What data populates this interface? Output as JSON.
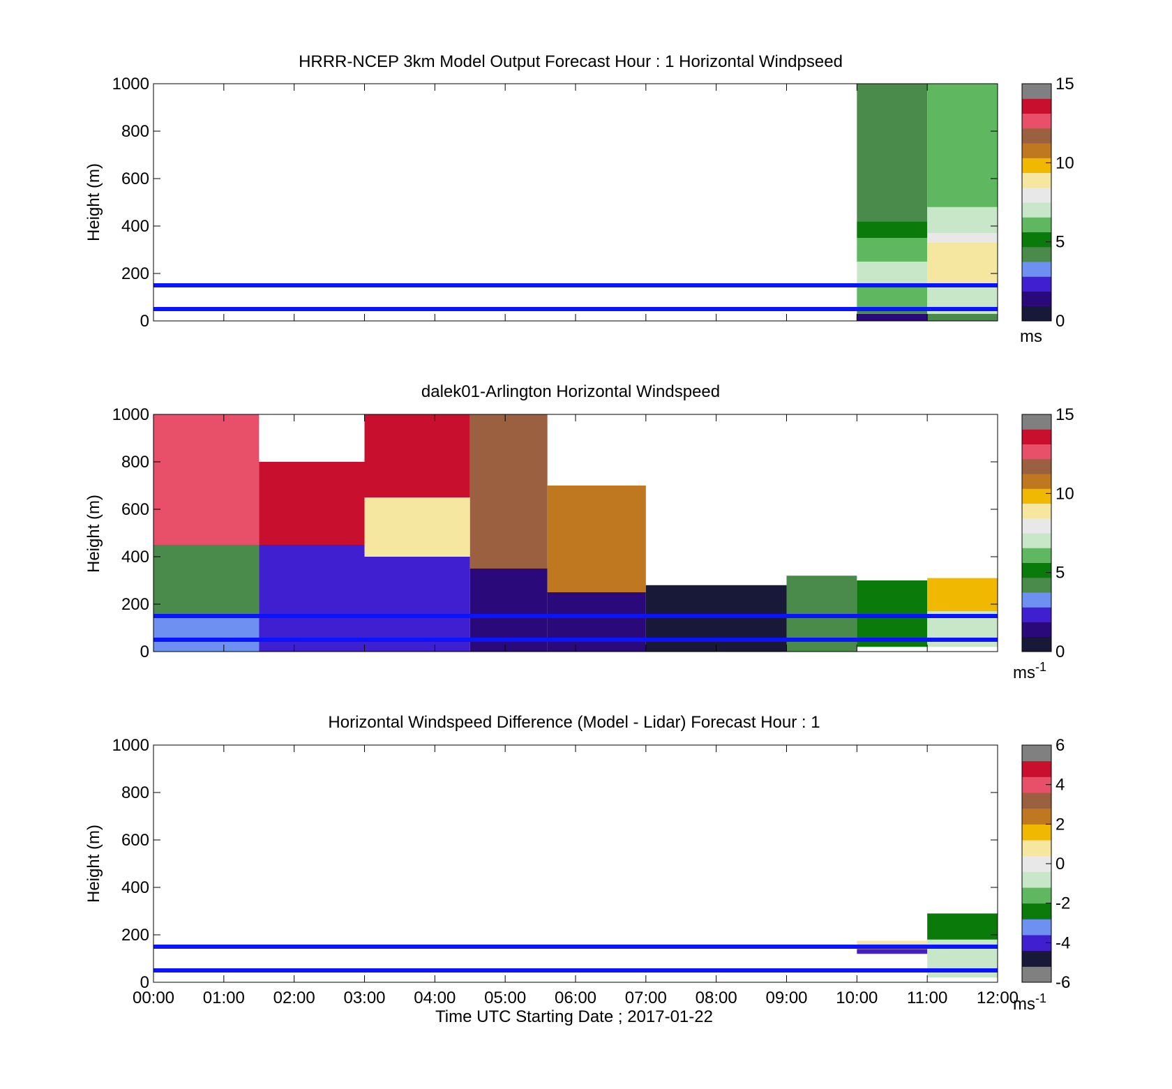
{
  "colors": {
    "overlay_line": "#0a14ff",
    "windspeed_scale": [
      "#181838",
      "#2a0a7a",
      "#3f1fd0",
      "#6e90f0",
      "#4a8a4a",
      "#0a7a0a",
      "#5fb85f",
      "#c8e6c8",
      "#e8e8e8",
      "#f5e6a0",
      "#f0b800",
      "#c07820",
      "#9a6040",
      "#e8506a",
      "#c8102e",
      "#808080"
    ],
    "difference_scale": [
      "#808080",
      "#181838",
      "#3f1fd0",
      "#6e90f0",
      "#0a7a0a",
      "#5fb85f",
      "#c8e6c8",
      "#e8e8e8",
      "#f5e6a0",
      "#f0b800",
      "#c07820",
      "#9a6040",
      "#e8506a",
      "#c8102e",
      "#808080"
    ]
  },
  "chart_data": [
    {
      "type": "heatmap",
      "title": "HRRR-NCEP 3km Model Output   Forecast Hour : 1 Horizontal Windpseed",
      "ylabel": "Height (m)",
      "ylim": [
        0,
        1000
      ],
      "yticks": [
        "0",
        "200",
        "400",
        "600",
        "800",
        "1000"
      ],
      "xlim": [
        "00:00",
        "12:00"
      ],
      "colorbar": {
        "range": [
          0,
          15
        ],
        "ticks": [
          "0",
          "5",
          "10",
          "15"
        ],
        "unit": "ms"
      },
      "overlay_lines_m": [
        150,
        50
      ],
      "columns": [
        {
          "t0": 10,
          "t1": 11,
          "cells": [
            [
              0,
              30,
              1.5
            ],
            [
              30,
              50,
              4.5
            ],
            [
              50,
              150,
              6.5
            ],
            [
              150,
              250,
              6.8
            ],
            [
              250,
              350,
              6.2
            ],
            [
              350,
              420,
              5.0
            ],
            [
              420,
              1000,
              4.4
            ]
          ]
        },
        {
          "t0": 11,
          "t1": 12,
          "cells": [
            [
              0,
              30,
              4.6
            ],
            [
              30,
              80,
              6.9
            ],
            [
              80,
              150,
              7.2
            ],
            [
              150,
              300,
              8.6
            ],
            [
              300,
              330,
              8.8
            ],
            [
              330,
              370,
              7.5
            ],
            [
              370,
              480,
              6.6
            ],
            [
              480,
              1000,
              6.0
            ]
          ]
        }
      ]
    },
    {
      "type": "heatmap",
      "title": "dalek01-Arlington  Horizontal Windspeed",
      "ylabel": "Height (m)",
      "ylim": [
        0,
        1000
      ],
      "yticks": [
        "0",
        "200",
        "400",
        "600",
        "800",
        "1000"
      ],
      "xlim": [
        "00:00",
        "12:00"
      ],
      "colorbar": {
        "range": [
          0,
          15
        ],
        "ticks": [
          "0",
          "5",
          "10",
          "15"
        ],
        "unit": "ms-1"
      },
      "overlay_lines_m": [
        150,
        50
      ],
      "regions": [
        {
          "t0": 0.0,
          "t1": 1.5,
          "h0": 0,
          "h1": 150,
          "v": 3.5
        },
        {
          "t0": 0.0,
          "t1": 1.5,
          "h0": 150,
          "h1": 450,
          "v": 4.6
        },
        {
          "t0": 0.0,
          "t1": 1.5,
          "h0": 450,
          "h1": 1000,
          "v": 13.0
        },
        {
          "t0": 1.5,
          "t1": 3.0,
          "h0": 0,
          "h1": 450,
          "v": 2.8
        },
        {
          "t0": 1.5,
          "t1": 3.0,
          "h0": 450,
          "h1": 800,
          "v": 13.8
        },
        {
          "t0": 3.0,
          "t1": 4.5,
          "h0": 0,
          "h1": 400,
          "v": 2.0
        },
        {
          "t0": 3.0,
          "t1": 4.5,
          "h0": 400,
          "h1": 650,
          "v": 9.0
        },
        {
          "t0": 3.0,
          "t1": 4.5,
          "h0": 650,
          "h1": 1000,
          "v": 13.5
        },
        {
          "t0": 4.5,
          "t1": 5.6,
          "h0": 0,
          "h1": 350,
          "v": 1.5
        },
        {
          "t0": 4.5,
          "t1": 5.6,
          "h0": 350,
          "h1": 1000,
          "v": 12.0
        },
        {
          "t0": 5.6,
          "t1": 7.0,
          "h0": 0,
          "h1": 250,
          "v": 1.2
        },
        {
          "t0": 5.6,
          "t1": 7.0,
          "h0": 250,
          "h1": 700,
          "v": 10.8
        },
        {
          "t0": 7.0,
          "t1": 9.0,
          "h0": 0,
          "h1": 280,
          "v": 0.8
        },
        {
          "t0": 9.0,
          "t1": 10.0,
          "h0": 0,
          "h1": 320,
          "v": 4.5
        },
        {
          "t0": 10.0,
          "t1": 11.0,
          "h0": 20,
          "h1": 300,
          "v": 5.5
        },
        {
          "t0": 11.0,
          "t1": 12.0,
          "h0": 20,
          "h1": 170,
          "v": 6.6
        },
        {
          "t0": 11.0,
          "t1": 12.0,
          "h0": 170,
          "h1": 310,
          "v": 9.5
        }
      ]
    },
    {
      "type": "heatmap",
      "title": "Horizontal Windspeed Difference (Model - Lidar) Forecast Hour : 1",
      "ylabel": "Height (m)",
      "xlabel": "Time UTC  Starting Date ; 2017-01-22",
      "ylim": [
        0,
        1000
      ],
      "yticks": [
        "0",
        "200",
        "400",
        "600",
        "800",
        "1000"
      ],
      "xticks": [
        "00:00",
        "01:00",
        "02:00",
        "03:00",
        "04:00",
        "05:00",
        "06:00",
        "07:00",
        "08:00",
        "09:00",
        "10:00",
        "11:00",
        "12:00"
      ],
      "colorbar": {
        "range": [
          -6,
          6
        ],
        "ticks": [
          "-6",
          "-4",
          "-2",
          "0",
          "2",
          "4",
          "6"
        ],
        "unit": "ms-1"
      },
      "overlay_lines_m": [
        150,
        50
      ],
      "columns": [
        {
          "t0": 10,
          "t1": 11,
          "cells": [
            [
              120,
              140,
              -4.0
            ],
            [
              140,
              160,
              1.2
            ],
            [
              160,
              175,
              0.8
            ]
          ]
        },
        {
          "t0": 11,
          "t1": 12,
          "cells": [
            [
              20,
              40,
              -1.0
            ],
            [
              40,
              100,
              -0.5
            ],
            [
              100,
              180,
              -1.0
            ],
            [
              180,
              290,
              -2.5
            ]
          ]
        }
      ]
    }
  ]
}
